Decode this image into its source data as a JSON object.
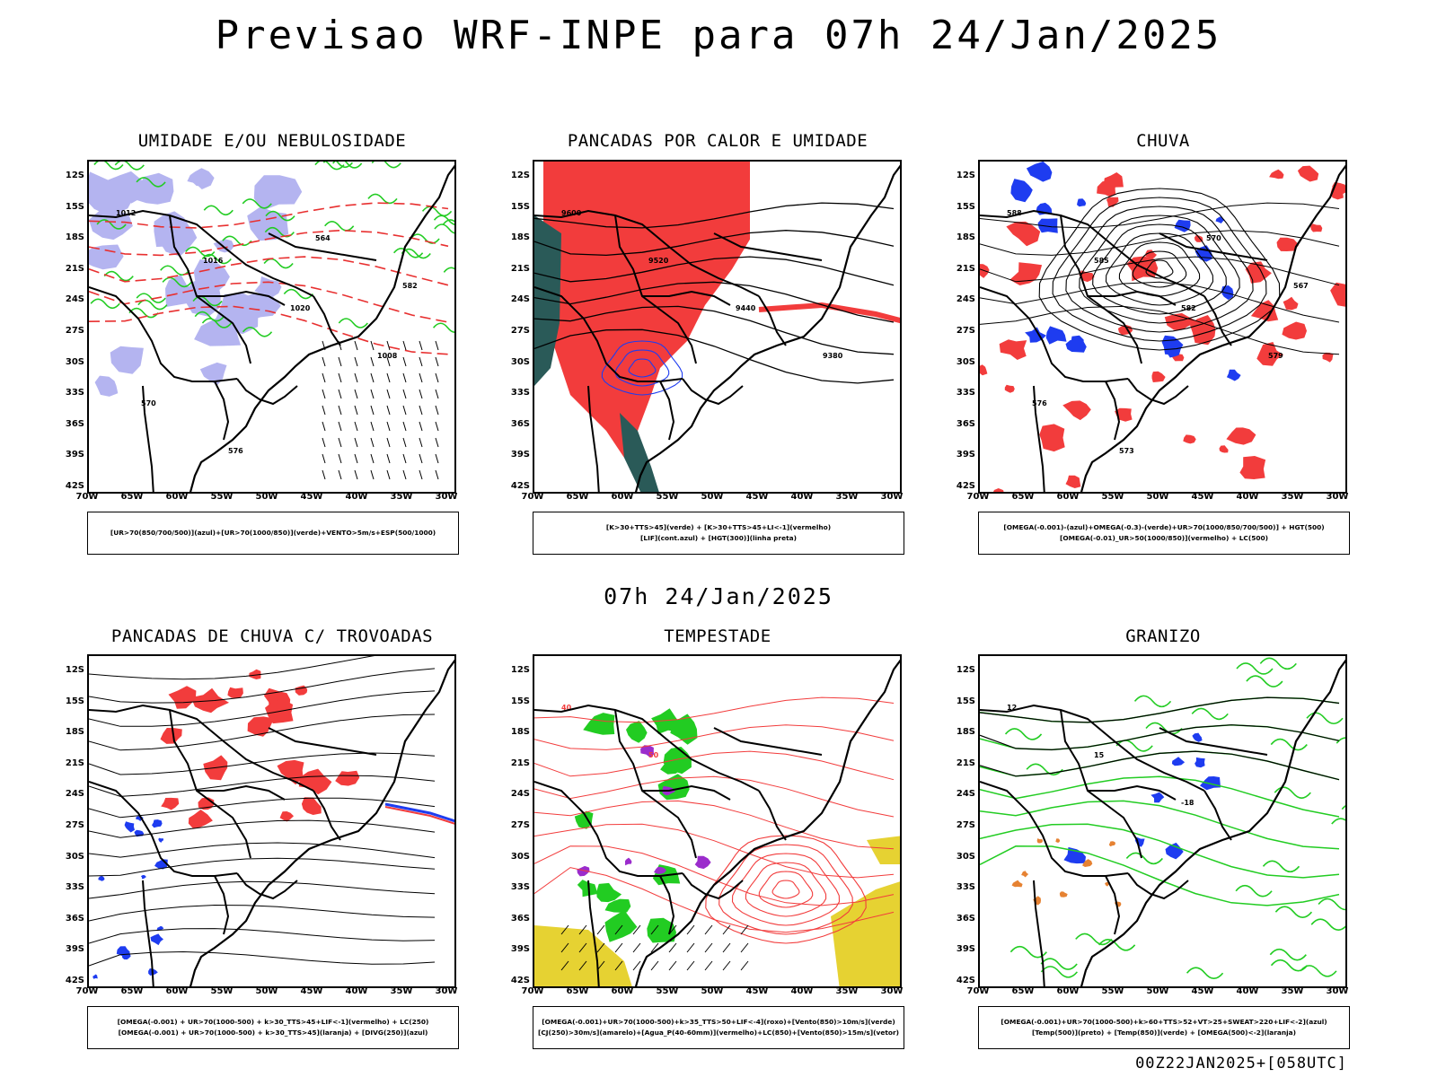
{
  "title": "Previsao WRF-INPE  para 07h 24/Jan/2025",
  "mid_date": "07h 24/Jan/2025",
  "footer": "00Z22JAN2025+[058UTC]",
  "axes": {
    "lat_labels": [
      "12S",
      "15S",
      "18S",
      "21S",
      "24S",
      "27S",
      "30S",
      "33S",
      "36S",
      "39S",
      "42S"
    ],
    "lon_labels": [
      "70W",
      "65W",
      "60W",
      "55W",
      "50W",
      "45W",
      "40W",
      "35W",
      "30W"
    ]
  },
  "colors": {
    "red": "#f23c3c",
    "green": "#22cc22",
    "blue": "#1e3cf0",
    "lavender": "#b4b4f0",
    "teal": "#2a5a58",
    "yellow": "#e6d232",
    "orange": "#e68232",
    "purple": "#9b2ccc"
  },
  "panels": [
    {
      "id": "umidade",
      "title": "UMIDADE E/OU NEBULOSIDADE",
      "legend": [
        "[UR>70(850/700/500)](azul)+[UR>70(1000/850)](verde)+VENTO>5m/s+ESP(500/1000)"
      ],
      "contour_labels": [
        "1012",
        "1016",
        "1020",
        "1008",
        "570",
        "576",
        "564",
        "582"
      ]
    },
    {
      "id": "pancadas-calor",
      "title": "PANCADAS POR CALOR E UMIDADE",
      "legend": [
        "[K>30+TTS>45](verde)  +  [K>30+TTS>45+LI<-1](vermelho)",
        "[LIF](cont.azul)  +  [HGT(300)](linha preta)"
      ],
      "contour_labels": [
        "9600",
        "9520",
        "9440",
        "9380"
      ]
    },
    {
      "id": "chuva",
      "title": "CHUVA",
      "legend": [
        "[OMEGA(-0.001)-(azul)+OMEGA(-0.3)-(verde)+UR>70(1000/850/700/500)] + HGT(500)",
        "[OMEGA(-0.01)_UR>50(1000/850)](vermelho) + LC(500)"
      ],
      "contour_labels": [
        "588",
        "585",
        "582",
        "579",
        "576",
        "573",
        "570",
        "567"
      ]
    },
    {
      "id": "pancadas-trovoadas",
      "title": "PANCADAS DE CHUVA C/ TROVOADAS",
      "legend": [
        "[OMEGA(-0.001) + UR>70(1000-500) + k>30_TTS>45+LIF<-1](vermelho) + LC(250)",
        "[OMEGA(-0.001) + UR>70(1000-500) + k>30_TTS>45](laranja) + [DIVG(250)](azul)"
      ],
      "contour_labels": []
    },
    {
      "id": "tempestade",
      "title": "TEMPESTADE",
      "legend": [
        "[OMEGA(-0.001)+UR>70(1000-500)+k>35_TTS>50+LIF<-4](roxo)+[Vento(850)>10m/s](verde)",
        "[CJ(250)>30m/s](amarelo)+[Agua_P(40-60mm)](vermelho)+LC(850)+[Vento(850)>15m/s](vetor)"
      ],
      "contour_labels": [
        "40",
        "50"
      ]
    },
    {
      "id": "granizo",
      "title": "GRANIZO",
      "legend": [
        "[OMEGA(-0.001)+UR>70(1000-500)+k>60+TTS>52+VT>25+SWEAT>220+LIF<-2](azul)",
        "[Temp(500)](preto) + [Temp(850)](verde) + [OMEGA(500)<-2](laranja)"
      ],
      "contour_labels": [
        "12",
        "15",
        "-18"
      ]
    }
  ]
}
